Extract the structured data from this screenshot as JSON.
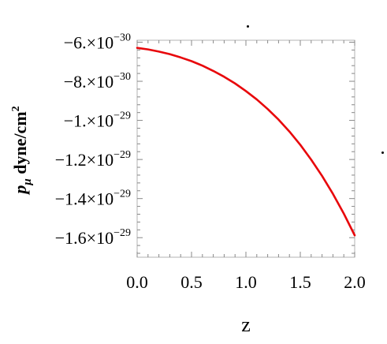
{
  "chart_data": {
    "type": "line",
    "title": "",
    "xlabel": "z",
    "ylabel": {
      "symbol": "p",
      "subscript": "μ",
      "unit": " dyne/cm",
      "unit_power": "2"
    },
    "xlim": [
      0.0,
      2.0
    ],
    "ylim": [
      -1.7e-29,
      -5.9e-30
    ],
    "grid": false,
    "legend": "none",
    "x_ticks": [
      {
        "value": 0.0,
        "label": "0.0"
      },
      {
        "value": 0.5,
        "label": "0.5"
      },
      {
        "value": 1.0,
        "label": "1.0"
      },
      {
        "value": 1.5,
        "label": "1.5"
      },
      {
        "value": 2.0,
        "label": "2.0"
      }
    ],
    "y_ticks": [
      {
        "value": -6e-30,
        "mantissa": "−6.",
        "base": "×10",
        "exponent": "−30"
      },
      {
        "value": -8e-30,
        "mantissa": "−8.",
        "base": "×10",
        "exponent": "−30"
      },
      {
        "value": -1e-29,
        "mantissa": "−1.",
        "base": "×10",
        "exponent": "−29"
      },
      {
        "value": -1.2e-29,
        "mantissa": "−1.2",
        "base": "×10",
        "exponent": "−29"
      },
      {
        "value": -1.4e-29,
        "mantissa": "−1.4",
        "base": "×10",
        "exponent": "−29"
      },
      {
        "value": -1.6e-29,
        "mantissa": "−1.6",
        "base": "×10",
        "exponent": "−29"
      }
    ],
    "series": [
      {
        "color": "#e8070b",
        "x": [
          0.0,
          0.1,
          0.2,
          0.3,
          0.4,
          0.5,
          0.6,
          0.7,
          0.8,
          0.9,
          1.0,
          1.1,
          1.2,
          1.3,
          1.4,
          1.5,
          1.6,
          1.7,
          1.8,
          1.9,
          2.0
        ],
        "y": [
          -6.29e-30,
          -6.37e-30,
          -6.48e-30,
          -6.61e-30,
          -6.78e-30,
          -6.97e-30,
          -7.2e-30,
          -7.47e-30,
          -7.77e-30,
          -8.11e-30,
          -8.5e-30,
          -8.93e-30,
          -9.42e-30,
          -9.96e-30,
          -1.057e-29,
          -1.125e-29,
          -1.201e-29,
          -1.284e-29,
          -1.376e-29,
          -1.477e-29,
          -1.588e-29
        ]
      }
    ]
  }
}
